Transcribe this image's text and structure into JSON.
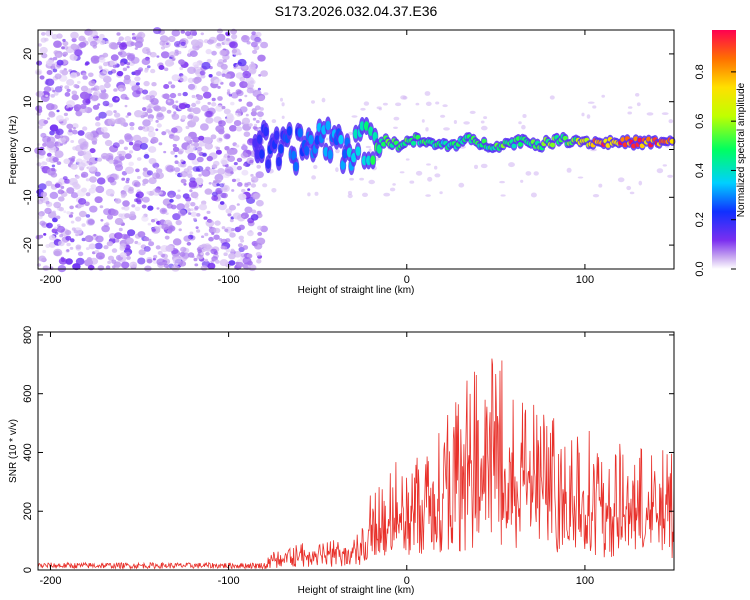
{
  "page": {
    "title": "S173.2026.032.04.37.E36"
  },
  "colors": {
    "background": "#ffffff",
    "snr_line": "#e8302a",
    "axis": "#000000"
  },
  "chart_data": [
    {
      "type": "heatmap",
      "xlabel": "Height of straight line (km)",
      "ylabel": "Frequency (Hz)",
      "xlim": [
        -207,
        150
      ],
      "ylim": [
        -25,
        25
      ],
      "x_ticks": [
        -200,
        -100,
        0,
        100
      ],
      "y_ticks": [
        -20,
        -10,
        0,
        10,
        20
      ],
      "colorscale": "rainbow",
      "colorbar": {
        "label": "Normalized spectral amplitude",
        "range": [
          0,
          0.97
        ],
        "ticks": [
          0.0,
          0.2,
          0.4,
          0.6,
          0.8
        ]
      },
      "noise_region_x": [
        -207,
        -80
      ],
      "ridge": {
        "x": [
          -85,
          -75,
          -65,
          -55,
          -45,
          -35,
          -25,
          -15,
          -5,
          5,
          15,
          25,
          35,
          45,
          55,
          65,
          75,
          85,
          95,
          105,
          115,
          125,
          135,
          150
        ],
        "y": [
          2,
          -1,
          0,
          1,
          3,
          0,
          1,
          2,
          1,
          2,
          1,
          1,
          2,
          1,
          1,
          2,
          1,
          2,
          2,
          1.5,
          1.5,
          1.5,
          1.5,
          1.5
        ],
        "amplitude": [
          0.2,
          0.25,
          0.3,
          0.3,
          0.35,
          0.35,
          0.45,
          0.55,
          0.6,
          0.55,
          0.5,
          0.5,
          0.55,
          0.5,
          0.6,
          0.5,
          0.6,
          0.6,
          0.65,
          0.9,
          0.95,
          0.95,
          0.95,
          0.95
        ]
      },
      "series": []
    },
    {
      "type": "line",
      "xlabel": "Height of straight line (km)",
      "ylabel": "SNR (10 * v/v)",
      "xlim": [
        -207,
        150
      ],
      "ylim": [
        0,
        810
      ],
      "x_ticks": [
        -200,
        -100,
        0,
        100
      ],
      "y_ticks": [
        0,
        200,
        400,
        600,
        800
      ],
      "envelope": {
        "x": [
          -207,
          -80,
          -75,
          -60,
          -40,
          -25,
          -20,
          -10,
          0,
          10,
          20,
          30,
          40,
          50,
          60,
          70,
          80,
          90,
          100,
          110,
          120,
          130,
          140,
          150
        ],
        "y": [
          25,
          25,
          70,
          90,
          110,
          150,
          300,
          350,
          400,
          450,
          550,
          650,
          700,
          750,
          650,
          600,
          550,
          520,
          500,
          420,
          430,
          420,
          430,
          400
        ]
      },
      "series": []
    }
  ]
}
